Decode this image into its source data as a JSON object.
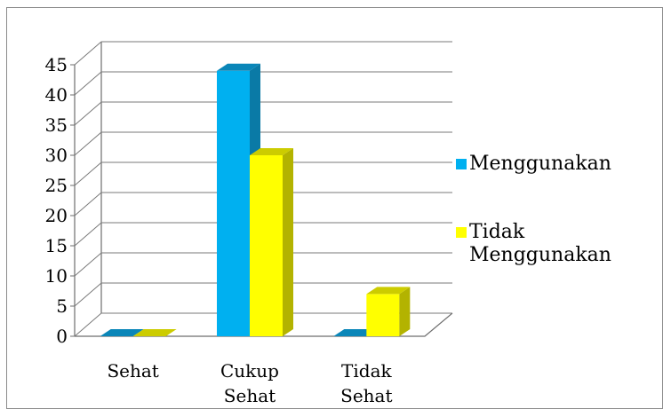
{
  "chart_data": {
    "type": "bar",
    "style": "3d-clustered-column",
    "categories": [
      [
        "Sehat"
      ],
      [
        "Cukup",
        "Sehat"
      ],
      [
        "Tidak",
        "Sehat"
      ]
    ],
    "series": [
      {
        "name": "Menggunakan",
        "values": [
          0,
          44,
          0
        ],
        "color": "#00b0f0",
        "side_color": "#0a7aa6",
        "top_color": "#0a86b8"
      },
      {
        "name": "Tidak Menggunakan",
        "values": [
          0,
          30,
          7
        ],
        "color": "#ffff00",
        "side_color": "#b3b300",
        "top_color": "#cccc00"
      }
    ],
    "legend_lines": [
      [
        "Menggunakan"
      ],
      [
        "Tidak",
        "Menggunakan"
      ]
    ],
    "ylim": [
      0,
      45
    ],
    "yticks": [
      "0",
      "5",
      "10",
      "15",
      "20",
      "25",
      "30",
      "35",
      "40",
      "45"
    ],
    "grid": true,
    "legend_position": "right",
    "title": "",
    "xlabel": "",
    "ylabel": ""
  }
}
